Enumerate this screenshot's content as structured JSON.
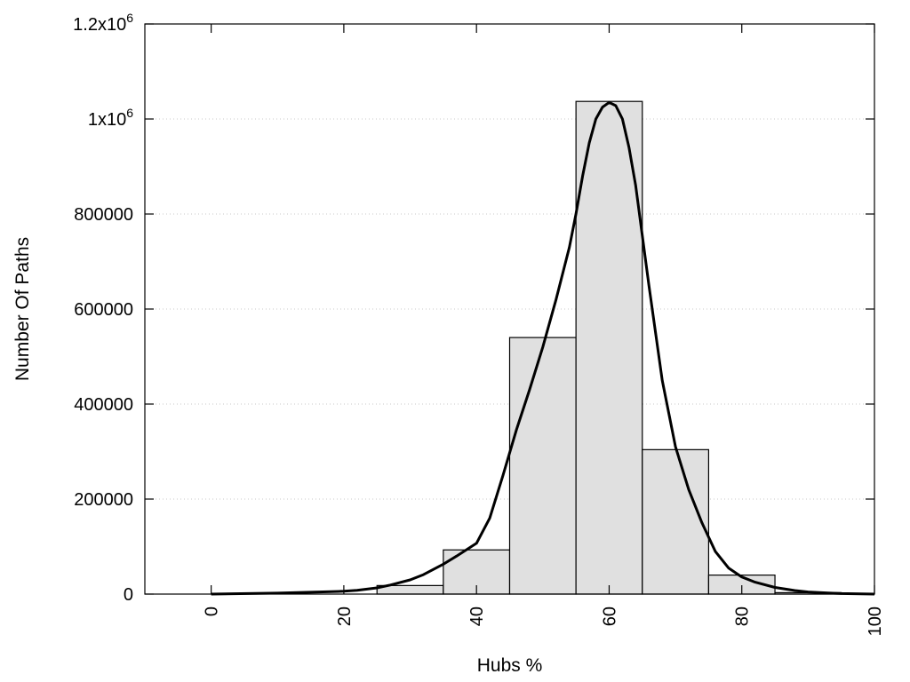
{
  "chart_data": {
    "type": "bar",
    "xlabel": "Hubs %",
    "ylabel": "Number Of Paths",
    "xlim": [
      -10,
      100
    ],
    "ylim": [
      0,
      1200000
    ],
    "grid": "y",
    "x_ticks": [
      {
        "value": 0,
        "label": "0"
      },
      {
        "value": 20,
        "label": "20"
      },
      {
        "value": 40,
        "label": "40"
      },
      {
        "value": 60,
        "label": "60"
      },
      {
        "value": 80,
        "label": "80"
      },
      {
        "value": 100,
        "label": "100"
      }
    ],
    "y_ticks": [
      {
        "value": 0,
        "label": "0"
      },
      {
        "value": 200000,
        "label": "200000"
      },
      {
        "value": 400000,
        "label": "400000"
      },
      {
        "value": 600000,
        "label": "600000"
      },
      {
        "value": 800000,
        "label": "800000"
      },
      {
        "value": 1000000,
        "label": "1x10",
        "sup": "6"
      },
      {
        "value": 1200000,
        "label": "1.2x10",
        "sup": "6"
      }
    ],
    "bins": [
      {
        "start": 25,
        "end": 35,
        "value": 18000
      },
      {
        "start": 35,
        "end": 45,
        "value": 93000
      },
      {
        "start": 45,
        "end": 55,
        "value": 540000
      },
      {
        "start": 55,
        "end": 65,
        "value": 1037000
      },
      {
        "start": 65,
        "end": 75,
        "value": 304000
      },
      {
        "start": 75,
        "end": 85,
        "value": 40000
      },
      {
        "start": 85,
        "end": 95,
        "value": 3000
      }
    ],
    "curve": {
      "x": [
        0,
        10,
        15,
        20,
        22,
        25,
        27,
        30,
        32,
        35,
        37,
        40,
        42,
        44,
        46,
        48,
        50,
        52,
        54,
        55,
        56,
        57,
        58,
        59,
        60,
        61,
        62,
        63,
        64,
        66,
        68,
        70,
        72,
        74,
        76,
        78,
        80,
        82,
        85,
        88,
        90,
        93,
        95,
        100
      ],
      "y": [
        0,
        2000,
        4000,
        6000,
        8000,
        13000,
        19000,
        30000,
        41000,
        63000,
        80000,
        107000,
        160000,
        250000,
        345000,
        430000,
        520000,
        620000,
        730000,
        800000,
        880000,
        950000,
        1000000,
        1025000,
        1035000,
        1028000,
        1000000,
        940000,
        860000,
        650000,
        450000,
        310000,
        220000,
        150000,
        90000,
        55000,
        36000,
        25000,
        14000,
        7500,
        4500,
        2500,
        1200,
        0
      ]
    }
  }
}
